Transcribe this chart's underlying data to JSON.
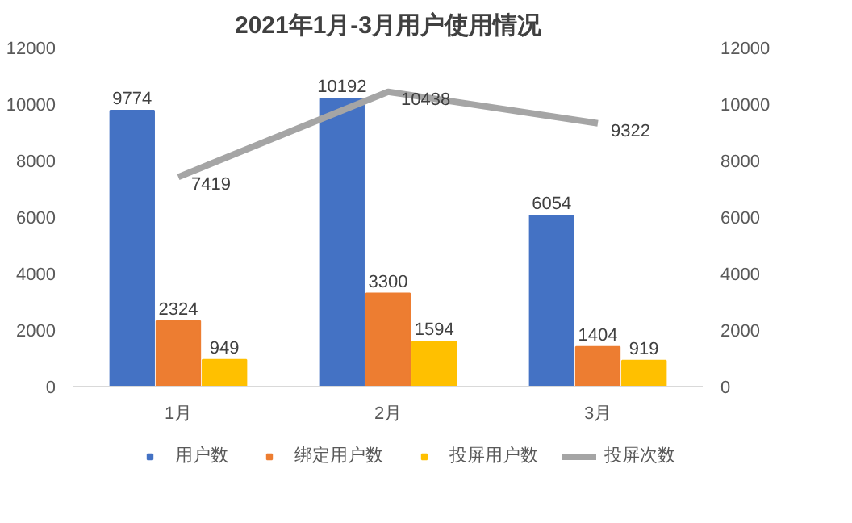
{
  "chart_data": {
    "type": "bar",
    "title": "2021年1月-3月用户使用情况",
    "categories": [
      "1月",
      "2月",
      "3月"
    ],
    "series": [
      {
        "name": "用户数",
        "color": "#4472c4",
        "values": [
          9774,
          10192,
          6054
        ]
      },
      {
        "name": "绑定用户数",
        "color": "#ed7d31",
        "values": [
          2324,
          3300,
          1404
        ]
      },
      {
        "name": "投屏用户数",
        "color": "#ffc000",
        "values": [
          949,
          1594,
          919
        ]
      },
      {
        "name": "投屏次数",
        "color": "#a5a5a5",
        "type": "line",
        "axis": "y2",
        "values": [
          7419,
          10438,
          9322
        ]
      }
    ],
    "ylim": [
      0,
      12000
    ],
    "yticks": [
      0,
      2000,
      4000,
      6000,
      8000,
      10000,
      12000
    ],
    "y2lim": [
      0,
      12000
    ],
    "y2ticks": [
      0,
      2000,
      4000,
      6000,
      8000,
      10000,
      12000
    ],
    "data_labels": true,
    "legend": "bottom",
    "grid": false,
    "marker": "none",
    "line_style": "solid"
  }
}
